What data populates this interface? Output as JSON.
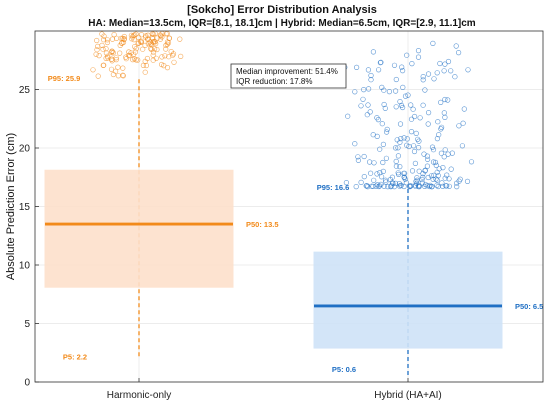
{
  "chart_data": {
    "type": "box",
    "title": "[Sokcho] Error Distribution Analysis",
    "subtitle": "HA: Median=13.5cm, IQR=[8.1, 18.1]cm | Hybrid: Median=6.5cm, IQR=[2.9, 11.1]cm",
    "ylabel": "Absolute Prediction Error (cm)",
    "ylim": [
      0,
      30
    ],
    "yticks": [
      "0",
      "5",
      "10",
      "15",
      "20",
      "25"
    ],
    "grid": true,
    "annotation": {
      "line1": "Median improvement: 51.4%",
      "line2": "IQR reduction: 17.8%"
    },
    "series": [
      {
        "category": "Harmonic-only",
        "color": "#f28a1a",
        "fill": "#fde0cb",
        "p5": 2.2,
        "q1": 8.1,
        "median": 13.5,
        "q3": 18.1,
        "p95": 25.9,
        "p5_label": "P5: 2.2",
        "p50_label": "P50: 13.5",
        "p95_label": "P95: 25.9"
      },
      {
        "category": "Hybrid (HA+AI)",
        "color": "#1f6fc4",
        "fill": "#cfe3f8",
        "p5": 0.6,
        "q1": 2.9,
        "median": 6.5,
        "q3": 11.1,
        "p95": 16.6,
        "p5_label": "P5: 0.6",
        "p50_label": "P50: 6.5",
        "p95_label": "P95: 16.6"
      }
    ]
  }
}
